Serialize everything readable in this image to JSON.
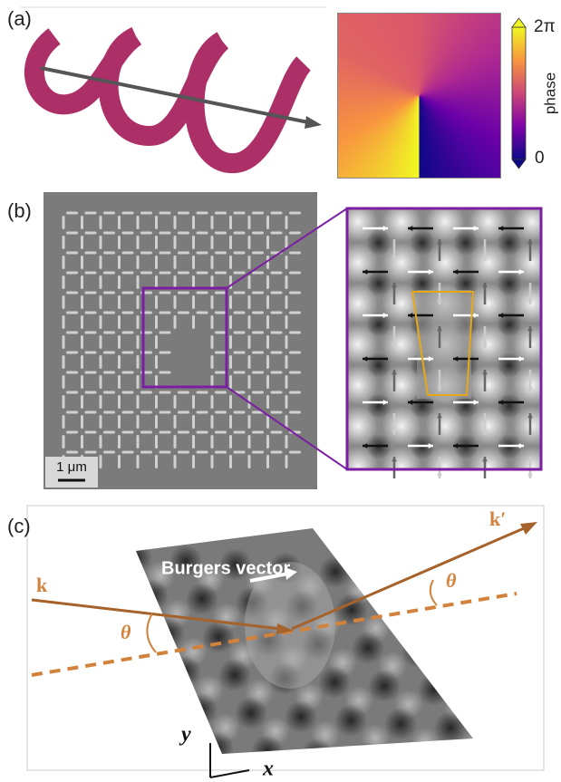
{
  "panel_a": {
    "label": "(a)",
    "colorbar": {
      "top_label": "2π",
      "axis_label": "phase",
      "bottom_label": "0"
    }
  },
  "panel_b": {
    "label": "(b)",
    "scale_bar": "1 μm"
  },
  "panel_c": {
    "label": "(c)",
    "annotation": "Burgers vector",
    "incident_label": "k",
    "outgoing_label": "k′",
    "angle_in": "θ",
    "angle_out": "θ",
    "axis_y": "y",
    "axis_x": "x"
  }
}
